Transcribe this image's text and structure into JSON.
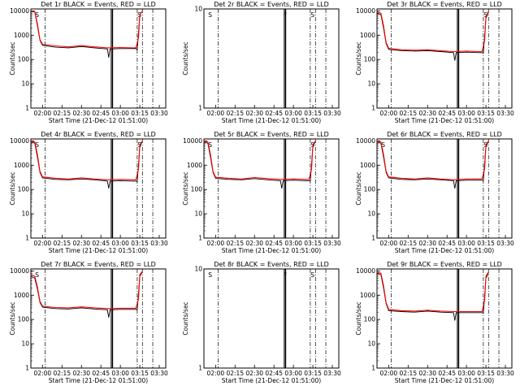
{
  "figure": {
    "xlabel": "Start Time (21-Dec-12 01:51:00)",
    "ylabel": "Counts/sec",
    "xticks": [
      "02:00",
      "02:15",
      "02:30",
      "02:45",
      "03:00",
      "03:15",
      "03:30"
    ],
    "yticks": [
      "1",
      "10",
      "100",
      "1000",
      "10000"
    ],
    "colors": {
      "events": "#000000",
      "lld": "#ff0000"
    }
  },
  "chart_data": [
    {
      "type": "line",
      "title": "Det 1r BLACK = Events, RED = LLD",
      "has_data": true,
      "markers": [
        "S",
        "S"
      ],
      "xlim": [
        "01:51",
        "03:35"
      ],
      "ylim": [
        1,
        12000
      ],
      "yscale": "log",
      "series": [
        {
          "name": "Events",
          "x": [
            "01:51",
            "01:54",
            "01:56",
            "01:58",
            "02:00",
            "02:10",
            "02:20",
            "02:30",
            "02:40",
            "02:50",
            "02:51",
            "02:52",
            "03:00",
            "03:10",
            "03:12",
            "03:13",
            "03:15",
            "03:17"
          ],
          "y": [
            9500,
            9000,
            2500,
            600,
            380,
            320,
            300,
            340,
            300,
            270,
            120,
            270,
            280,
            280,
            280,
            250,
            7000,
            9500
          ]
        },
        {
          "name": "LLD",
          "x": [
            "01:51",
            "01:54",
            "01:56",
            "01:58",
            "02:00",
            "02:10",
            "02:20",
            "02:30",
            "02:40",
            "02:50",
            "03:00",
            "03:10",
            "03:12",
            "03:14",
            "03:15",
            "03:17"
          ],
          "y": [
            10000,
            9500,
            3000,
            650,
            420,
            360,
            330,
            370,
            330,
            300,
            310,
            300,
            300,
            800,
            7000,
            10000
          ]
        }
      ]
    },
    {
      "type": "line",
      "title": "Det 2r BLACK = Events, RED = LLD",
      "has_data": false,
      "markers": [
        "S",
        "F",
        "S"
      ],
      "xlim": [
        "01:51",
        "03:35"
      ],
      "ylim": [
        1,
        10
      ],
      "series": []
    },
    {
      "type": "line",
      "title": "Det 3r BLACK = Events, RED = LLD",
      "has_data": true,
      "markers": [
        "S"
      ],
      "xlim": [
        "01:51",
        "03:35"
      ],
      "ylim": [
        1,
        12000
      ],
      "yscale": "log",
      "series": [
        {
          "name": "Events",
          "x": [
            "01:51",
            "01:54",
            "01:56",
            "01:58",
            "02:00",
            "02:10",
            "02:20",
            "02:30",
            "02:40",
            "02:50",
            "02:51",
            "02:52",
            "03:00",
            "03:10",
            "03:12",
            "03:13",
            "03:15",
            "03:17"
          ],
          "y": [
            8000,
            7000,
            2000,
            450,
            260,
            230,
            220,
            230,
            210,
            190,
            90,
            190,
            200,
            190,
            190,
            180,
            5000,
            9000
          ]
        },
        {
          "name": "LLD",
          "x": [
            "01:51",
            "01:54",
            "01:56",
            "01:58",
            "02:00",
            "02:10",
            "02:20",
            "02:30",
            "02:40",
            "02:50",
            "03:00",
            "03:10",
            "03:12",
            "03:14",
            "03:15",
            "03:17"
          ],
          "y": [
            9000,
            8000,
            2500,
            500,
            290,
            250,
            240,
            250,
            230,
            210,
            220,
            210,
            210,
            600,
            6000,
            9500
          ]
        }
      ]
    },
    {
      "type": "line",
      "title": "Det 4r BLACK = Events, RED = LLD",
      "has_data": true,
      "markers": [
        "S",
        "S"
      ],
      "xlim": [
        "01:51",
        "03:35"
      ],
      "ylim": [
        1,
        12000
      ],
      "yscale": "log",
      "series": [
        {
          "name": "Events",
          "x": [
            "01:51",
            "01:54",
            "01:56",
            "01:58",
            "02:00",
            "02:10",
            "02:20",
            "02:30",
            "02:40",
            "02:50",
            "02:51",
            "02:52",
            "03:00",
            "03:10",
            "03:12",
            "03:13",
            "03:15",
            "03:17"
          ],
          "y": [
            9000,
            8000,
            2200,
            500,
            300,
            260,
            250,
            270,
            250,
            220,
            110,
            220,
            230,
            220,
            220,
            210,
            6000,
            9500
          ]
        },
        {
          "name": "LLD",
          "x": [
            "01:51",
            "01:54",
            "01:56",
            "01:58",
            "02:00",
            "02:10",
            "02:20",
            "02:30",
            "02:40",
            "02:50",
            "03:00",
            "03:10",
            "03:12",
            "03:14",
            "03:15",
            "03:17"
          ],
          "y": [
            10000,
            9000,
            2800,
            550,
            330,
            290,
            270,
            300,
            270,
            250,
            260,
            250,
            250,
            700,
            7000,
            10000
          ]
        }
      ]
    },
    {
      "type": "line",
      "title": "Det 5r BLACK = Events, RED = LLD",
      "has_data": true,
      "markers": [
        "S",
        "S"
      ],
      "xlim": [
        "01:51",
        "03:35"
      ],
      "ylim": [
        1,
        12000
      ],
      "yscale": "log",
      "series": [
        {
          "name": "Events",
          "x": [
            "01:51",
            "01:54",
            "01:56",
            "01:58",
            "02:00",
            "02:10",
            "02:20",
            "02:30",
            "02:40",
            "02:50",
            "02:51",
            "02:52",
            "03:00",
            "03:10",
            "03:12",
            "03:13",
            "03:15",
            "03:17"
          ],
          "y": [
            9000,
            8000,
            2200,
            500,
            290,
            260,
            250,
            280,
            250,
            230,
            110,
            230,
            240,
            230,
            230,
            220,
            6000,
            9500
          ]
        },
        {
          "name": "LLD",
          "x": [
            "01:51",
            "01:54",
            "01:56",
            "01:58",
            "02:00",
            "02:10",
            "02:20",
            "02:30",
            "02:40",
            "02:50",
            "03:00",
            "03:10",
            "03:12",
            "03:14",
            "03:15",
            "03:17"
          ],
          "y": [
            10000,
            9000,
            2800,
            550,
            320,
            290,
            270,
            310,
            280,
            260,
            270,
            260,
            260,
            700,
            7000,
            10000
          ]
        }
      ]
    },
    {
      "type": "line",
      "title": "Det 6r BLACK = Events, RED = LLD",
      "has_data": true,
      "markers": [
        "S",
        "S"
      ],
      "xlim": [
        "01:51",
        "03:35"
      ],
      "ylim": [
        1,
        12000
      ],
      "yscale": "log",
      "series": [
        {
          "name": "Events",
          "x": [
            "01:51",
            "01:54",
            "01:56",
            "01:58",
            "02:00",
            "02:10",
            "02:20",
            "02:30",
            "02:40",
            "02:50",
            "02:51",
            "02:52",
            "03:00",
            "03:10",
            "03:12",
            "03:13",
            "03:15",
            "03:17"
          ],
          "y": [
            9000,
            8000,
            2200,
            500,
            300,
            260,
            250,
            270,
            250,
            230,
            110,
            230,
            240,
            240,
            240,
            230,
            6000,
            9500
          ]
        },
        {
          "name": "LLD",
          "x": [
            "01:51",
            "01:54",
            "01:56",
            "01:58",
            "02:00",
            "02:10",
            "02:20",
            "02:30",
            "02:40",
            "02:50",
            "03:00",
            "03:10",
            "03:12",
            "03:14",
            "03:15",
            "03:17"
          ],
          "y": [
            10000,
            9000,
            2800,
            550,
            330,
            290,
            270,
            300,
            270,
            250,
            270,
            270,
            270,
            700,
            7000,
            10000
          ]
        }
      ]
    },
    {
      "type": "line",
      "title": "Det 7r BLACK = Events, RED = LLD",
      "has_data": true,
      "markers": [
        "S"
      ],
      "xlim": [
        "01:51",
        "03:35"
      ],
      "ylim": [
        1,
        12000
      ],
      "yscale": "log",
      "series": [
        {
          "name": "Events",
          "x": [
            "01:51",
            "01:54",
            "01:56",
            "01:58",
            "02:00",
            "02:10",
            "02:20",
            "02:30",
            "02:40",
            "02:50",
            "02:51",
            "02:52",
            "03:00",
            "03:10",
            "03:12",
            "03:13",
            "03:15",
            "03:17"
          ],
          "y": [
            6000,
            5000,
            1800,
            500,
            320,
            280,
            270,
            300,
            270,
            250,
            120,
            250,
            260,
            260,
            260,
            250,
            6000,
            9000
          ]
        },
        {
          "name": "LLD",
          "x": [
            "01:51",
            "01:54",
            "01:56",
            "01:58",
            "02:00",
            "02:10",
            "02:20",
            "02:30",
            "02:40",
            "02:50",
            "03:00",
            "03:10",
            "03:12",
            "03:14",
            "03:15",
            "03:17"
          ],
          "y": [
            7000,
            6000,
            2200,
            550,
            350,
            310,
            300,
            330,
            300,
            280,
            290,
            290,
            290,
            700,
            7000,
            9500
          ]
        }
      ]
    },
    {
      "type": "line",
      "title": "Det 8r BLACK = Events, RED = LLD",
      "has_data": false,
      "markers": [
        "S",
        "F",
        "S"
      ],
      "xlim": [
        "01:51",
        "03:35"
      ],
      "ylim": [
        1,
        10
      ],
      "series": []
    },
    {
      "type": "line",
      "title": "Det 9r BLACK = Events, RED = LLD",
      "has_data": true,
      "markers": [],
      "xlim": [
        "01:51",
        "03:35"
      ],
      "ylim": [
        1,
        12000
      ],
      "yscale": "log",
      "series": [
        {
          "name": "Events",
          "x": [
            "01:51",
            "01:54",
            "01:56",
            "01:58",
            "02:00",
            "02:10",
            "02:20",
            "02:30",
            "02:40",
            "02:50",
            "02:51",
            "02:52",
            "03:00",
            "03:10",
            "03:12",
            "03:13",
            "03:15",
            "03:17"
          ],
          "y": [
            8000,
            7000,
            2000,
            450,
            230,
            210,
            200,
            220,
            200,
            190,
            90,
            190,
            190,
            190,
            190,
            180,
            5000,
            8500
          ]
        },
        {
          "name": "LLD",
          "x": [
            "01:51",
            "01:54",
            "01:56",
            "01:58",
            "02:00",
            "02:10",
            "02:20",
            "02:30",
            "02:40",
            "02:50",
            "03:00",
            "03:10",
            "03:12",
            "03:14",
            "03:15",
            "03:17"
          ],
          "y": [
            9000,
            8000,
            2500,
            500,
            260,
            230,
            220,
            240,
            220,
            210,
            210,
            210,
            210,
            600,
            6000,
            9000
          ]
        }
      ]
    }
  ]
}
